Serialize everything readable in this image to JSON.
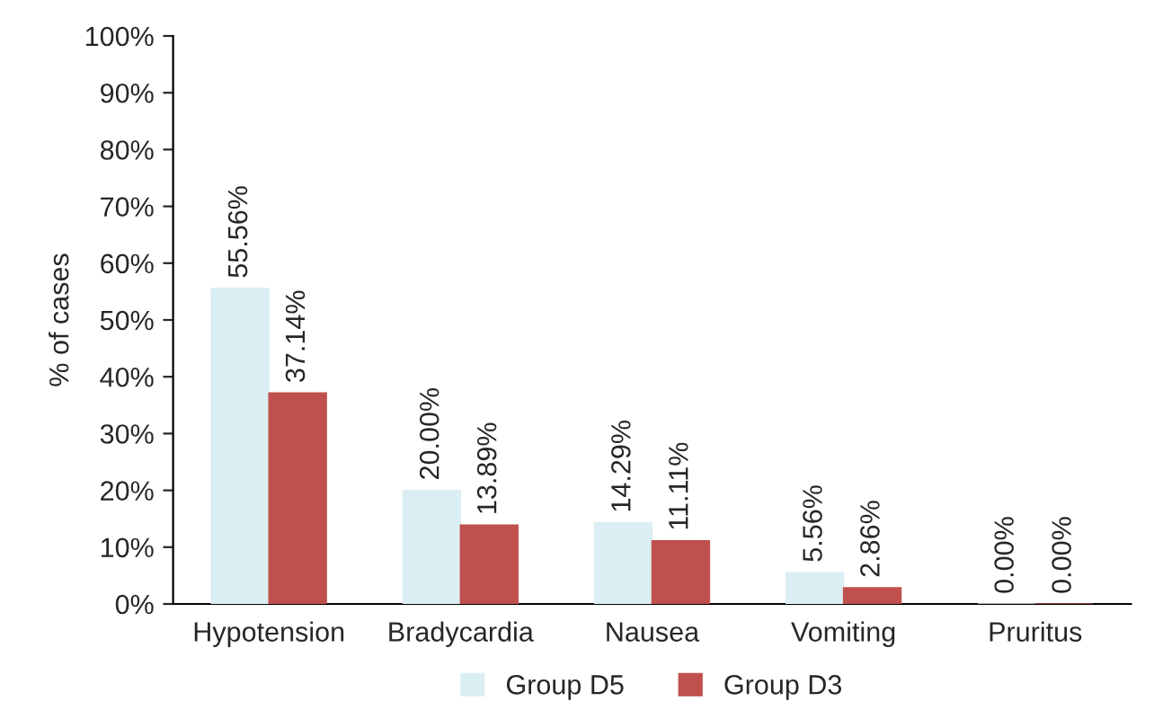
{
  "chart_data": {
    "type": "bar",
    "ylabel": "% of cases",
    "categories": [
      "Hypotension",
      "Bradycardia",
      "Nausea",
      "Vomiting",
      "Pruritus"
    ],
    "series": [
      {
        "name": "Group D5",
        "color": "#daeef3",
        "values": [
          55.56,
          20.0,
          14.29,
          5.56,
          0.0
        ],
        "value_labels": [
          "55.56%",
          "20.00%",
          "14.29%",
          "5.56%",
          "0.00%"
        ]
      },
      {
        "name": "Group D3",
        "color": "#c0504d",
        "values": [
          37.14,
          13.89,
          11.11,
          2.86,
          0.0
        ],
        "value_labels": [
          "37.14%",
          "13.89%",
          "11.11%",
          "2.86%",
          "0.00%"
        ]
      }
    ],
    "ylim": [
      0,
      100
    ],
    "yticks": [
      {
        "value": 0,
        "label": "0%"
      },
      {
        "value": 10,
        "label": "10%"
      },
      {
        "value": 20,
        "label": "20%"
      },
      {
        "value": 30,
        "label": "30%"
      },
      {
        "value": 40,
        "label": "40%"
      },
      {
        "value": 50,
        "label": "50%"
      },
      {
        "value": 60,
        "label": "60%"
      },
      {
        "value": 70,
        "label": "70%"
      },
      {
        "value": 80,
        "label": "80%"
      },
      {
        "value": 90,
        "label": "90%"
      },
      {
        "value": 100,
        "label": "100%"
      }
    ],
    "grid": false,
    "legend": "bottom"
  }
}
